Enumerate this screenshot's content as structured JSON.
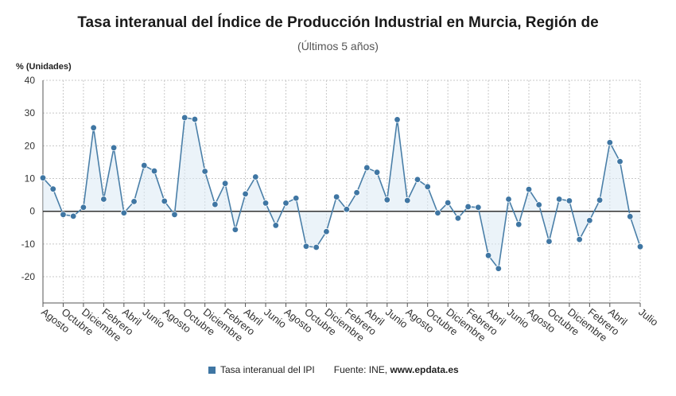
{
  "title": "Tasa interanual del Índice de Producción Industrial en Murcia, Región de",
  "subtitle": "(Últimos 5 años)",
  "unit_label": "% (Unidades)",
  "legend": {
    "label": "Tasa interanual del IPI"
  },
  "source": {
    "prefix": "Fuente: INE, ",
    "site": "www.epdata.es"
  },
  "colors": {
    "line": "#4a7fa8",
    "marker": "#3f76a3",
    "fill": "#dbe9f4",
    "grid": "#c8c8c8",
    "zero": "#333333"
  },
  "chart_data": {
    "type": "line",
    "ylim": [
      -28,
      40
    ],
    "yticks": [
      -20,
      -10,
      0,
      10,
      20,
      30,
      40
    ],
    "grid": true,
    "legend_position": "bottom",
    "xticklabels": [
      "Agosto",
      "Octubre",
      "Diciembre",
      "Febrero",
      "Abril",
      "Junio",
      "Agosto",
      "Octubre",
      "Diciembre",
      "Febrero",
      "Abril",
      "Junio",
      "Agosto",
      "Octubre",
      "Diciembre",
      "Febrero",
      "Abril",
      "Junio",
      "Agosto",
      "Octubre",
      "Diciembre",
      "Febrero",
      "Abril",
      "Junio",
      "Agosto",
      "Octubre",
      "Diciembre",
      "Febrero",
      "Abril",
      "Julio"
    ],
    "xtick_index": [
      0,
      2,
      4,
      6,
      8,
      10,
      12,
      14,
      16,
      18,
      20,
      22,
      24,
      26,
      28,
      30,
      32,
      34,
      36,
      38,
      40,
      42,
      44,
      46,
      48,
      50,
      52,
      54,
      56,
      59
    ],
    "series": [
      {
        "name": "Tasa interanual del IPI",
        "values": [
          10.2,
          6.8,
          -1.0,
          -1.5,
          1.2,
          25.5,
          3.7,
          19.4,
          -0.5,
          3.0,
          14.0,
          12.3,
          3.1,
          -1.0,
          28.6,
          28.1,
          12.2,
          2.1,
          8.5,
          -5.6,
          5.3,
          10.5,
          2.5,
          -4.3,
          2.5,
          4.0,
          -10.7,
          -11.0,
          -6.2,
          4.4,
          0.6,
          5.7,
          13.3,
          11.9,
          3.5,
          28.0,
          3.3,
          9.7,
          7.5,
          -0.5,
          2.6,
          -2.1,
          1.4,
          1.2,
          -13.5,
          -17.5,
          3.7,
          -4.0,
          6.7,
          2.0,
          -9.2,
          3.7,
          3.2,
          -8.6,
          -2.8,
          3.4,
          21.0,
          15.2,
          -1.6,
          -10.8
        ]
      }
    ]
  }
}
